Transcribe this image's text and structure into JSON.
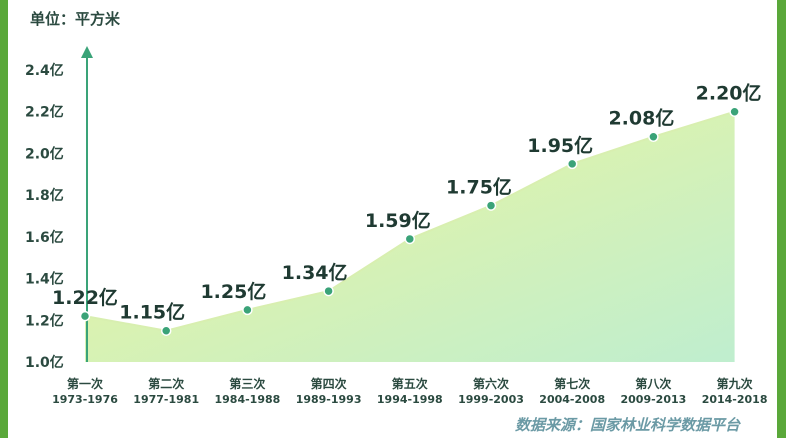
{
  "header": {
    "unit_label": "单位：平方米"
  },
  "footer": {
    "source": "数据来源：国家林业科学数据平台"
  },
  "colors": {
    "axis": "#3aa378",
    "line": "#d8efb0",
    "point": "#3aa378",
    "fill_top": "#eef59a",
    "fill_bottom": "#bfeecf"
  },
  "chart_data": {
    "type": "area",
    "title": "",
    "xlabel": "",
    "ylabel": "",
    "y_unit": "亿",
    "ylim": [
      1.0,
      2.4
    ],
    "yticks": [
      "1.0亿",
      "1.2亿",
      "1.4亿",
      "1.6亿",
      "1.8亿",
      "2.0亿",
      "2.2亿",
      "2.4亿"
    ],
    "grid": false,
    "categories": [
      {
        "name": "第一次",
        "years": "1973-1976"
      },
      {
        "name": "第二次",
        "years": "1977-1981"
      },
      {
        "name": "第三次",
        "years": "1984-1988"
      },
      {
        "name": "第四次",
        "years": "1989-1993"
      },
      {
        "name": "第五次",
        "years": "1994-1998"
      },
      {
        "name": "第六次",
        "years": "1999-2003"
      },
      {
        "name": "第七次",
        "years": "2004-2008"
      },
      {
        "name": "第八次",
        "years": "2009-2013"
      },
      {
        "name": "第九次",
        "years": "2014-2018"
      }
    ],
    "values": [
      1.22,
      1.15,
      1.25,
      1.34,
      1.59,
      1.75,
      1.95,
      2.08,
      2.2
    ],
    "data_labels": [
      "1.22亿",
      "1.15亿",
      "1.25亿",
      "1.34亿",
      "1.59亿",
      "1.75亿",
      "1.95亿",
      "2.08亿",
      "2.20亿"
    ]
  }
}
